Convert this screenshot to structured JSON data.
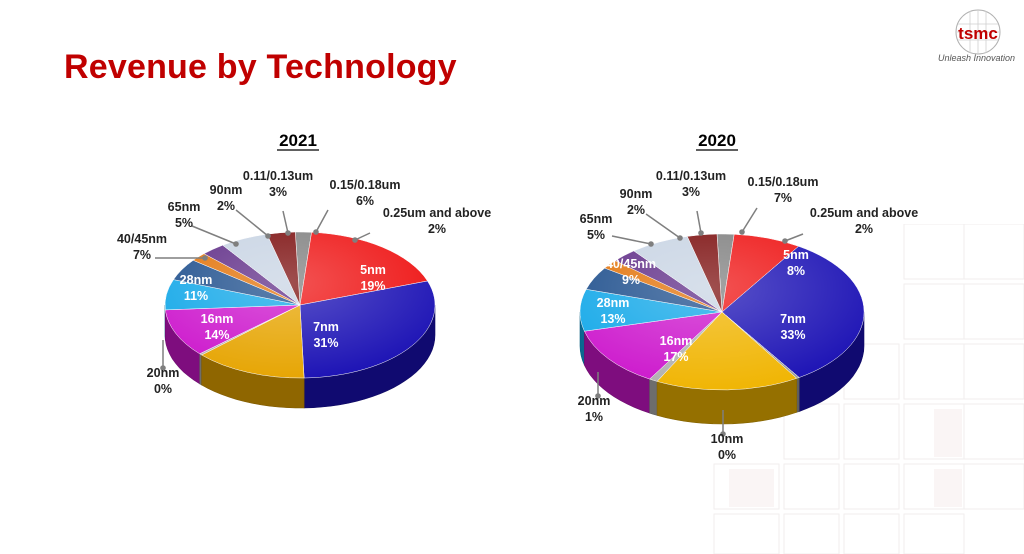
{
  "header": {
    "title": "Revenue by Technology",
    "logo_text": "tsmc",
    "tagline": "Unleash Innovation",
    "title_color": "#c00000"
  },
  "chart_data": [
    {
      "type": "pie",
      "title": "2021",
      "slices": [
        {
          "label": "0.25um and above",
          "value": "2%",
          "pct": 2,
          "color": "#7f7f7f"
        },
        {
          "label": "5nm",
          "value": "19%",
          "pct": 19,
          "color": "#ee1111"
        },
        {
          "label": "7nm",
          "value": "31%",
          "pct": 31,
          "color": "#1a10b4"
        },
        {
          "label": "16nm",
          "value": "14%",
          "pct": 14,
          "color": "#e6a400"
        },
        {
          "label": "20nm",
          "value": "0%",
          "pct": 0,
          "color": "#b0b0b0"
        },
        {
          "label": "28nm",
          "value": "11%",
          "pct": 11,
          "color": "#cc15cc"
        },
        {
          "label": "40/45nm",
          "value": "7%",
          "pct": 7,
          "color": "#11a7e8"
        },
        {
          "label": "65nm",
          "value": "5%",
          "pct": 5,
          "color": "#1d4e8c"
        },
        {
          "label": "90nm",
          "value": "2%",
          "pct": 2,
          "color": "#e27208"
        },
        {
          "label": "0.11/0.13um",
          "value": "3%",
          "pct": 3,
          "color": "#5e2b86"
        },
        {
          "label": "0.15/0.18um",
          "value": "6%",
          "pct": 6,
          "color": "#c7d3e3"
        },
        {
          "label": "",
          "value": "",
          "pct": 0,
          "color": "#7a0b0b"
        }
      ]
    },
    {
      "type": "pie",
      "title": "2020",
      "slices": [
        {
          "label": "0.25um and above",
          "value": "2%",
          "pct": 2,
          "color": "#7f7f7f"
        },
        {
          "label": "5nm",
          "value": "8%",
          "pct": 8,
          "color": "#ee1111"
        },
        {
          "label": "7nm",
          "value": "33%",
          "pct": 33,
          "color": "#1a10b4"
        },
        {
          "label": "10nm",
          "value": "0%",
          "pct": 0,
          "color": "#9a9a9a"
        },
        {
          "label": "16nm",
          "value": "17%",
          "pct": 17,
          "color": "#f0b400"
        },
        {
          "label": "20nm",
          "value": "1%",
          "pct": 1,
          "color": "#b0b0b0"
        },
        {
          "label": "28nm",
          "value": "13%",
          "pct": 13,
          "color": "#cc15cc"
        },
        {
          "label": "40/45nm",
          "value": "9%",
          "pct": 9,
          "color": "#11a7e8"
        },
        {
          "label": "65nm",
          "value": "5%",
          "pct": 5,
          "color": "#1d4e8c"
        },
        {
          "label": "90nm",
          "value": "2%",
          "pct": 2,
          "color": "#e27208"
        },
        {
          "label": "0.11/0.13um",
          "value": "3%",
          "pct": 3,
          "color": "#5e2b86"
        },
        {
          "label": "0.15/0.18um",
          "value": "7%",
          "pct": 7,
          "color": "#c7d3e3"
        },
        {
          "label": "",
          "value": "",
          "pct": 0,
          "color": "#7a0b0b"
        }
      ]
    }
  ]
}
